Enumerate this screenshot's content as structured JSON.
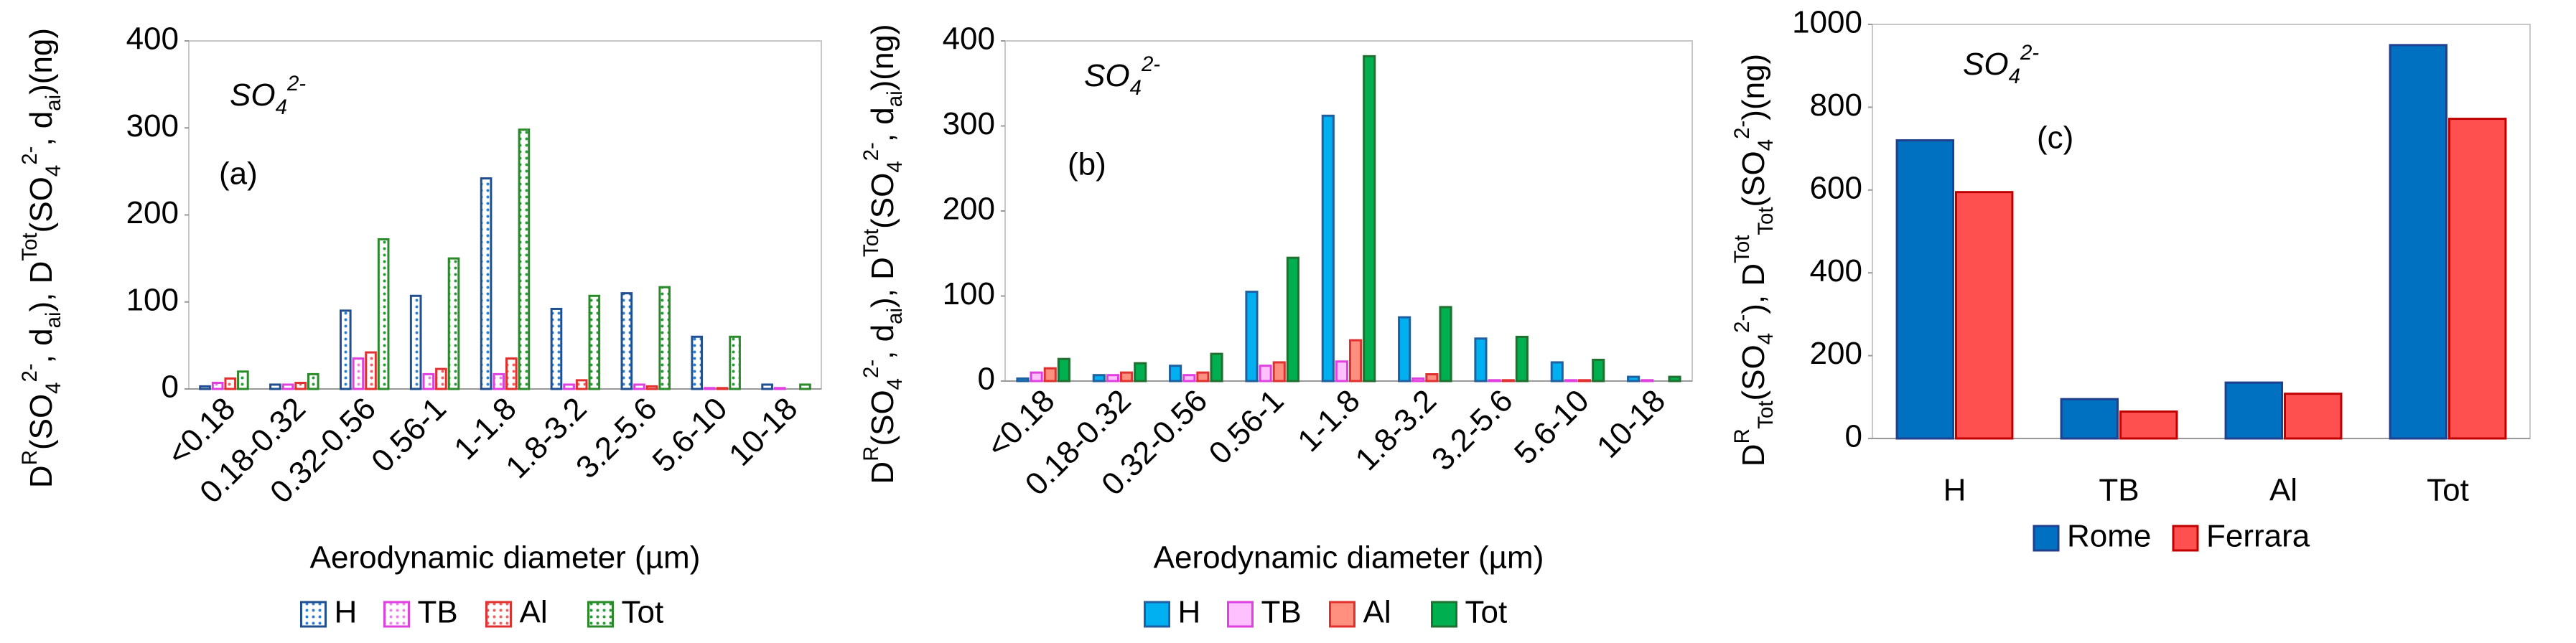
{
  "chart_data": [
    {
      "type": "bar",
      "fill_style": "pattern",
      "y_label": [
        {
          "text": "D"
        },
        {
          "text": "R",
          "shift": "super"
        },
        {
          "text": "(SO"
        },
        {
          "text": "4",
          "shift": "sub"
        },
        {
          "text": "2-",
          "shift": "super"
        },
        {
          "text": ", d"
        },
        {
          "text": "ai",
          "shift": "sub"
        },
        {
          "text": "), D"
        },
        {
          "text": "Tot",
          "shift": "super"
        },
        {
          "text": "(SO"
        },
        {
          "text": "4",
          "shift": "sub"
        },
        {
          "text": "2-",
          "shift": "super"
        },
        {
          "text": ", d"
        },
        {
          "text": "ai",
          "shift": "sub"
        },
        {
          "text": ")(ng)"
        }
      ],
      "species": [
        {
          "text": "SO"
        },
        {
          "text": "4",
          "shift": "sub"
        },
        {
          "text": "2-",
          "shift": "super"
        }
      ],
      "panel_label": "(a)",
      "x_label": "Aerodynamic diameter (µm)",
      "categories": [
        "<0.18",
        "0.18-0.32",
        "0.32-0.56",
        "0.56-1",
        "1-1.8",
        "1.8-3.2",
        "3.2-5.6",
        "5.6-10",
        "10-18"
      ],
      "series": [
        {
          "name": "H",
          "color": "#2f7fd0",
          "edge": "#1f4f8f",
          "values": [
            3,
            5,
            90,
            107,
            242,
            92,
            110,
            60,
            5
          ]
        },
        {
          "name": "TB",
          "color": "#f080f0",
          "edge": "#e040e0",
          "values": [
            7,
            5,
            35,
            17,
            17,
            5,
            5,
            1,
            1
          ]
        },
        {
          "name": "Al",
          "color": "#f06060",
          "edge": "#e03030",
          "values": [
            12,
            7,
            42,
            23,
            35,
            10,
            3,
            1,
            0
          ]
        },
        {
          "name": "Tot",
          "color": "#2a9a3a",
          "edge": "#2a8a2a",
          "values": [
            20,
            17,
            172,
            150,
            298,
            107,
            117,
            60,
            5
          ]
        }
      ],
      "ylim": [
        0,
        400
      ],
      "yticks": [
        0,
        100,
        200,
        300,
        400
      ],
      "grid": false
    },
    {
      "type": "bar",
      "fill_style": "solid",
      "y_label": [
        {
          "text": "D"
        },
        {
          "text": "R",
          "shift": "super"
        },
        {
          "text": "(SO"
        },
        {
          "text": "4",
          "shift": "sub"
        },
        {
          "text": "2-",
          "shift": "super"
        },
        {
          "text": ", d"
        },
        {
          "text": "ai",
          "shift": "sub"
        },
        {
          "text": "), D"
        },
        {
          "text": "Tot",
          "shift": "super"
        },
        {
          "text": "(SO"
        },
        {
          "text": "4",
          "shift": "sub"
        },
        {
          "text": "2-",
          "shift": "super"
        },
        {
          "text": ", d"
        },
        {
          "text": "ai",
          "shift": "sub"
        },
        {
          "text": ")(ng)"
        }
      ],
      "species": [
        {
          "text": "SO"
        },
        {
          "text": "4",
          "shift": "sub"
        },
        {
          "text": "2-",
          "shift": "super"
        }
      ],
      "panel_label": "(b)",
      "x_label": "Aerodynamic diameter (µm)",
      "categories": [
        "<0.18",
        "0.18-0.32",
        "0.32-0.56",
        "0.56-1",
        "1-1.8",
        "1.8-3.2",
        "3.2-5.6",
        "5.6-10",
        "10-18"
      ],
      "series": [
        {
          "name": "H",
          "color": "#00b0f0",
          "edge": "#2060a0",
          "values": [
            3,
            7,
            18,
            105,
            312,
            75,
            50,
            22,
            5
          ]
        },
        {
          "name": "TB",
          "color": "#ffc0ff",
          "edge": "#e040e0",
          "values": [
            10,
            7,
            7,
            18,
            23,
            3,
            1,
            1,
            1
          ]
        },
        {
          "name": "Al",
          "color": "#ff9080",
          "edge": "#e03030",
          "values": [
            15,
            10,
            10,
            22,
            48,
            8,
            1,
            1,
            0
          ]
        },
        {
          "name": "Tot",
          "color": "#00b050",
          "edge": "#207030",
          "values": [
            26,
            21,
            32,
            145,
            382,
            87,
            52,
            25,
            5
          ]
        }
      ],
      "ylim": [
        0,
        400
      ],
      "yticks": [
        0,
        100,
        200,
        300,
        400
      ],
      "grid": false
    },
    {
      "type": "bar",
      "fill_style": "solid",
      "y_label": [
        {
          "text": "D"
        },
        {
          "text": "R",
          "shift": "super"
        },
        {
          "text": "Tot",
          "shift": "sub"
        },
        {
          "text": "(SO"
        },
        {
          "text": "4",
          "shift": "sub"
        },
        {
          "text": "2-",
          "shift": "super"
        },
        {
          "text": "), D"
        },
        {
          "text": "Tot",
          "shift": "super"
        },
        {
          "text": "Tot",
          "shift": "sub"
        },
        {
          "text": "(SO"
        },
        {
          "text": "4",
          "shift": "sub"
        },
        {
          "text": "2-",
          "shift": "super"
        },
        {
          "text": ")(ng)"
        }
      ],
      "species": [
        {
          "text": "SO"
        },
        {
          "text": "4",
          "shift": "sub"
        },
        {
          "text": "2-",
          "shift": "super"
        }
      ],
      "panel_label": "(c)",
      "categories": [
        "H",
        "TB",
        "Al",
        "Tot"
      ],
      "series": [
        {
          "name": "Rome",
          "color": "#0070c0",
          "edge": "#1f3f8f",
          "values": [
            720,
            95,
            135,
            950
          ]
        },
        {
          "name": "Ferrara",
          "color": "#ff5050",
          "edge": "#c00000",
          "values": [
            595,
            65,
            108,
            772
          ]
        }
      ],
      "ylim": [
        0,
        1000
      ],
      "yticks": [
        0,
        200,
        400,
        600,
        800,
        1000
      ],
      "grid": false
    }
  ]
}
